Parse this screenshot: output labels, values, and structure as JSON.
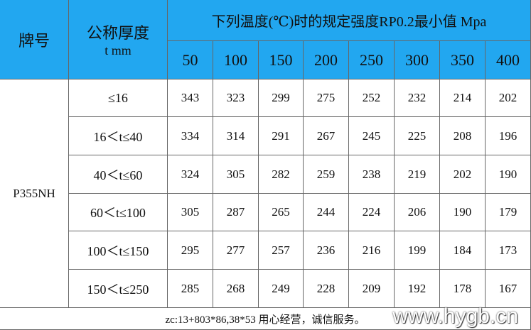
{
  "table": {
    "header": {
      "grade": "牌号",
      "thickness": "公称厚度",
      "thickness_unit": "t mm",
      "title": "下列温度(℃)时的规定强度RP0.2最小值 Mpa",
      "temperatures": [
        50,
        100,
        150,
        200,
        250,
        300,
        350,
        400
      ]
    },
    "grade": "P355NH",
    "rows": [
      {
        "thickness": "≤16",
        "values": [
          343,
          323,
          299,
          275,
          252,
          232,
          214,
          202
        ]
      },
      {
        "thickness": "16＜t≤40",
        "values": [
          334,
          314,
          291,
          267,
          245,
          225,
          208,
          196
        ]
      },
      {
        "thickness": "40＜t≤60",
        "values": [
          324,
          305,
          282,
          259,
          238,
          219,
          202,
          190
        ]
      },
      {
        "thickness": "60＜t≤100",
        "values": [
          305,
          287,
          265,
          244,
          224,
          206,
          190,
          179
        ]
      },
      {
        "thickness": "100＜t≤150",
        "values": [
          295,
          277,
          257,
          236,
          216,
          199,
          184,
          173
        ]
      },
      {
        "thickness": "150＜t≤250",
        "values": [
          285,
          268,
          249,
          228,
          209,
          192,
          178,
          167
        ]
      }
    ],
    "footer": "zc:13+803*86,38*53 用心经营，诚信服务。",
    "watermark": "www.hygb.cn"
  }
}
